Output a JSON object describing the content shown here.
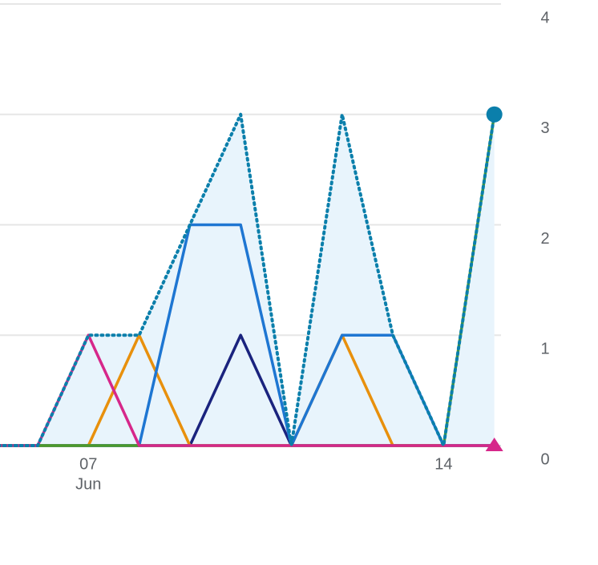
{
  "chart_data": {
    "type": "line",
    "categories": [
      null,
      null,
      "07",
      null,
      null,
      null,
      null,
      null,
      null,
      "14",
      null
    ],
    "category_sublabels": [
      null,
      null,
      "Jun",
      null,
      null,
      null,
      null,
      null,
      null,
      null,
      null
    ],
    "ylim": [
      0,
      4
    ],
    "yticks": [
      0,
      1,
      2,
      3,
      4
    ],
    "grid": true,
    "series": [
      {
        "color": "#1a237e",
        "values": [
          0,
          0,
          0,
          0,
          0,
          1,
          0,
          0,
          0,
          0,
          0
        ]
      },
      {
        "color": "#e8900c",
        "values": [
          0,
          0,
          0,
          1,
          0,
          0,
          0,
          1,
          0,
          0,
          0
        ]
      },
      {
        "color": "#1e76d2",
        "values": [
          0,
          0,
          0,
          0,
          2,
          2,
          0,
          1,
          1,
          0,
          0
        ]
      },
      {
        "color": "#4c9a2a",
        "values": [
          0,
          0,
          0,
          0,
          0,
          0,
          0,
          0,
          0,
          0,
          3
        ]
      },
      {
        "color": "#d6278a",
        "values": [
          0,
          0,
          1,
          0,
          0,
          0,
          0,
          0,
          0,
          0,
          0
        ],
        "marker": "triangle"
      },
      {
        "color": "#0b7fab",
        "values": [
          0,
          0,
          1,
          1,
          2,
          3,
          0,
          3,
          1,
          0,
          3
        ],
        "style": "dotted",
        "fill": "#e8f4fc",
        "marker": "circle"
      }
    ]
  }
}
